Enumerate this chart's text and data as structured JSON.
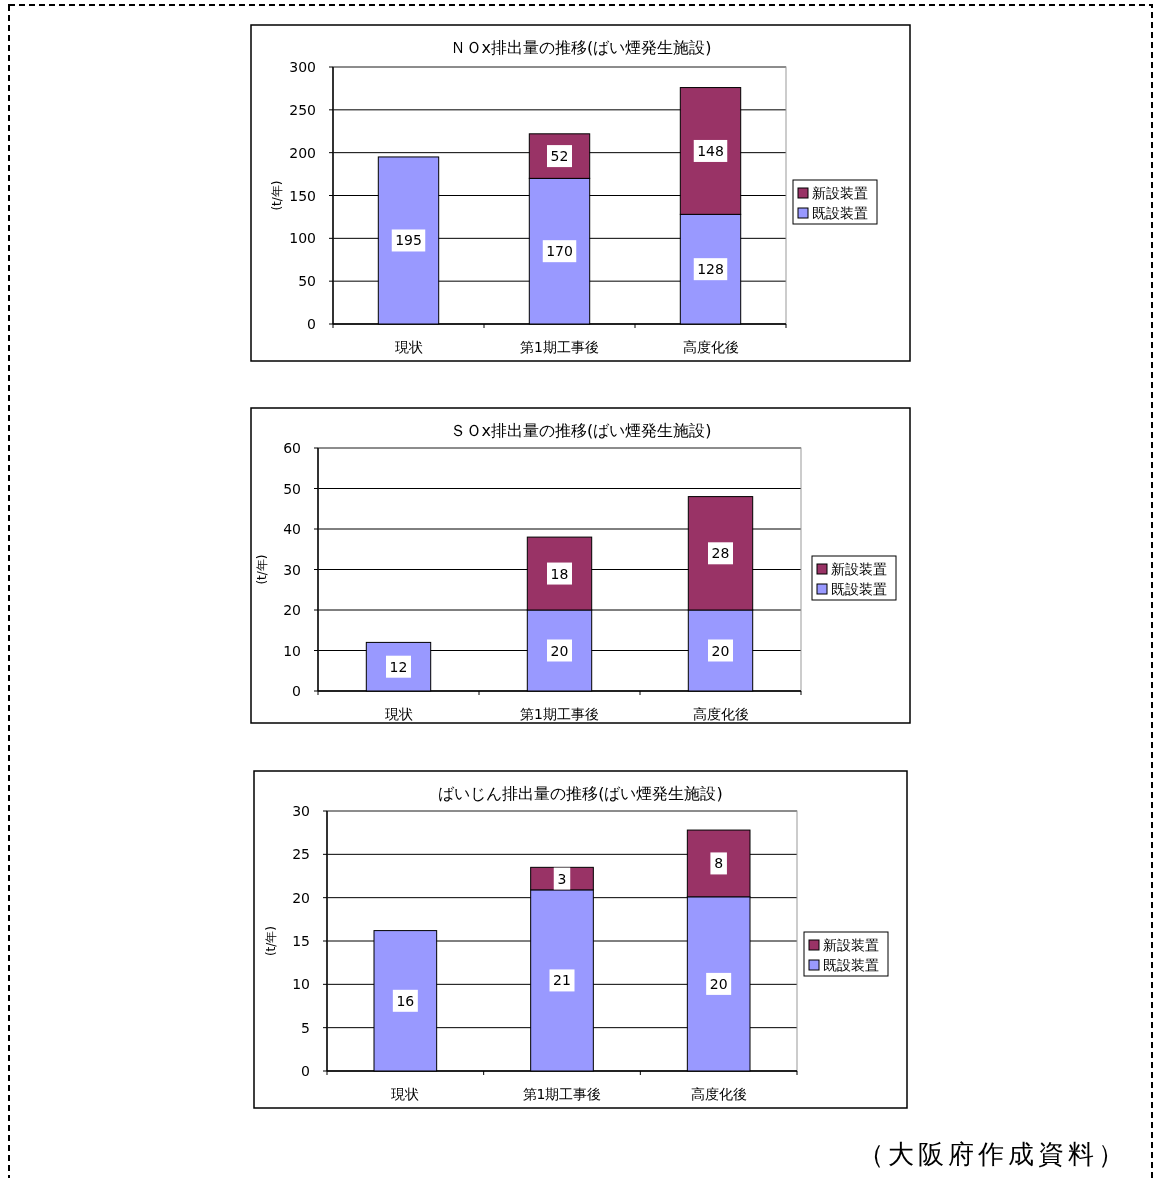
{
  "chart_data": [
    {
      "type": "bar",
      "stacked": true,
      "title": "ＮＯx排出量の推移(ばい煙発生施設)",
      "ylabel": "(t/年)",
      "categories": [
        "現状",
        "第1期工事後",
        "高度化後"
      ],
      "series": [
        {
          "name": "既設装置",
          "color": "#9999ff",
          "values": [
            195,
            170,
            128
          ]
        },
        {
          "name": "新設装置",
          "color": "#993366",
          "values": [
            null,
            52,
            148
          ]
        }
      ],
      "ylim": [
        0,
        300
      ],
      "yticks": [
        0,
        50,
        100,
        150,
        200,
        250,
        300
      ],
      "grid": "y",
      "legend": "right",
      "data_labels": true
    },
    {
      "type": "bar",
      "stacked": true,
      "title": "ＳＯx排出量の推移(ばい煙発生施設)",
      "ylabel": "(t/年)",
      "categories": [
        "現状",
        "第1期工事後",
        "高度化後"
      ],
      "series": [
        {
          "name": "既設装置",
          "color": "#9999ff",
          "values": [
            12,
            20,
            20
          ]
        },
        {
          "name": "新設装置",
          "color": "#993366",
          "values": [
            null,
            18,
            28
          ]
        }
      ],
      "ylim": [
        0,
        60
      ],
      "yticks": [
        0,
        10,
        20,
        30,
        40,
        50,
        60
      ],
      "grid": "y",
      "legend": "right",
      "data_labels": true
    },
    {
      "type": "bar",
      "stacked": true,
      "title": "ばいじん排出量の推移(ばい煙発生施設)",
      "ylabel": "(t/年)",
      "categories": [
        "現状",
        "第1期工事後",
        "高度化後"
      ],
      "series": [
        {
          "name": "既設装置",
          "color": "#9999ff",
          "values": [
            16.2,
            20.9,
            20.1
          ],
          "value_labels": [
            "16",
            "21",
            "20"
          ]
        },
        {
          "name": "新設装置",
          "color": "#993366",
          "values": [
            null,
            2.6,
            7.7
          ],
          "value_labels": [
            null,
            "3",
            "8"
          ]
        }
      ],
      "ylim": [
        0,
        30
      ],
      "yticks": [
        0,
        5,
        10,
        15,
        20,
        25,
        30
      ],
      "grid": "y",
      "legend": "right",
      "annotations": [
        "（大阪府作成資料）"
      ]
    }
  ]
}
